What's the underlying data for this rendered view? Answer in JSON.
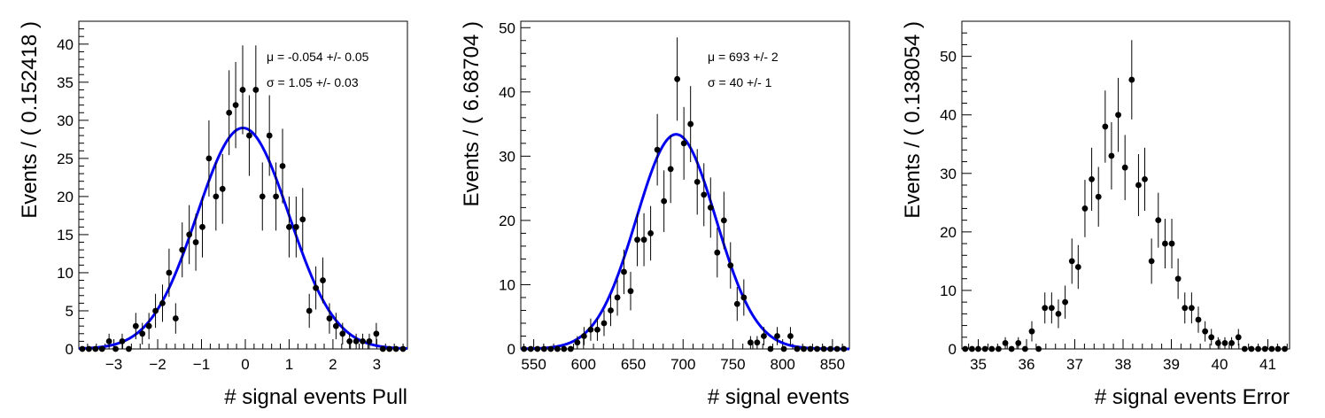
{
  "chart_data": [
    {
      "type": "scatter",
      "xlabel": "# signal events Pull",
      "ylabel": "Events / ( 0.152418 )",
      "xlim": [
        -3.8,
        3.7
      ],
      "ylim": [
        0,
        43
      ],
      "xticks": [
        -3,
        -2,
        -1,
        0,
        1,
        2,
        3
      ],
      "yticks": [
        0,
        5,
        10,
        15,
        20,
        25,
        30,
        35,
        40
      ],
      "xtick_labels": [
        "−3",
        "−2",
        "−1",
        "0",
        "1",
        "2",
        "3"
      ],
      "ytick_labels": [
        "0",
        "5",
        "10",
        "15",
        "20",
        "25",
        "30",
        "35",
        "40"
      ],
      "annotations": [
        "μ = -0.054 +/- 0.05",
        "σ =  1.05 +/- 0.03"
      ],
      "fit_curve": {
        "type": "gaussian",
        "amplitude": 29,
        "mean": -0.054,
        "sigma": 1.05,
        "color": "#0000ee"
      },
      "series": [
        {
          "marker": "circle",
          "color": "#000000",
          "x": [
            -3.72,
            -3.57,
            -3.42,
            -3.27,
            -3.11,
            -2.96,
            -2.81,
            -2.66,
            -2.5,
            -2.35,
            -2.2,
            -2.05,
            -1.89,
            -1.74,
            -1.59,
            -1.44,
            -1.28,
            -1.13,
            -0.98,
            -0.83,
            -0.67,
            -0.52,
            -0.37,
            -0.22,
            -0.06,
            0.09,
            0.24,
            0.39,
            0.55,
            0.7,
            0.85,
            1.0,
            1.16,
            1.31,
            1.46,
            1.61,
            1.77,
            1.92,
            2.07,
            2.22,
            2.38,
            2.53,
            2.68,
            2.83,
            2.99,
            3.14,
            3.29,
            3.44,
            3.6
          ],
          "y": [
            0,
            0,
            0,
            0,
            1,
            0,
            1,
            0,
            3,
            2,
            3,
            5,
            6,
            10,
            4,
            13,
            15,
            14,
            16,
            25,
            20,
            21,
            31,
            32,
            34,
            28,
            34,
            20,
            28,
            20,
            24,
            16,
            16,
            17,
            5,
            8,
            9,
            4,
            3,
            2,
            1,
            1,
            1,
            1,
            2,
            0,
            0,
            0,
            0
          ]
        }
      ]
    },
    {
      "type": "scatter",
      "xlabel": "# signal events",
      "ylabel": "Events / ( 6.68704 )",
      "xlim": [
        537,
        867
      ],
      "ylim": [
        0,
        51
      ],
      "xticks": [
        550,
        600,
        650,
        700,
        750,
        800,
        850
      ],
      "yticks": [
        0,
        10,
        20,
        30,
        40,
        50
      ],
      "xtick_labels": [
        "550",
        "600",
        "650",
        "700",
        "750",
        "800",
        "850"
      ],
      "ytick_labels": [
        "0",
        "10",
        "20",
        "30",
        "40",
        "50"
      ],
      "annotations": [
        "μ =  693 +/- 2",
        "σ =  40 +/- 1"
      ],
      "fit_curve": {
        "type": "gaussian",
        "amplitude": 33.4,
        "mean": 693,
        "sigma": 40,
        "color": "#0000ee"
      },
      "series": [
        {
          "marker": "circle",
          "color": "#000000",
          "x": [
            540.3,
            547.0,
            553.7,
            560.4,
            567.1,
            573.8,
            580.4,
            587.1,
            593.8,
            600.5,
            607.2,
            613.9,
            620.6,
            627.3,
            634.0,
            640.6,
            647.3,
            654.0,
            660.7,
            667.4,
            674.1,
            680.8,
            687.5,
            694.1,
            700.8,
            707.5,
            714.2,
            720.9,
            727.6,
            734.3,
            741.0,
            747.6,
            754.3,
            761.0,
            767.7,
            774.4,
            781.1,
            787.8,
            794.5,
            801.2,
            807.8,
            814.5,
            821.2,
            827.9,
            834.6,
            841.3,
            848.0,
            854.7,
            861.4
          ],
          "y": [
            0,
            0,
            0,
            0,
            0,
            0,
            0,
            0,
            1,
            2,
            3,
            3,
            4,
            6,
            8,
            12,
            9,
            17,
            17,
            18,
            31,
            23,
            28,
            42,
            32,
            35,
            26,
            24,
            22,
            15,
            20,
            13,
            7,
            8,
            1,
            1,
            2,
            0,
            2,
            0,
            2,
            0,
            0,
            0,
            0,
            0,
            0,
            0,
            0
          ]
        }
      ]
    },
    {
      "type": "scatter",
      "xlabel": "# signal events Error",
      "ylabel": "Events / ( 0.138054 )",
      "xlim": [
        34.66,
        41.45
      ],
      "ylim": [
        0,
        56
      ],
      "xticks": [
        35,
        36,
        37,
        38,
        39,
        40,
        41
      ],
      "yticks": [
        0,
        10,
        20,
        30,
        40,
        50
      ],
      "xtick_labels": [
        "35",
        "36",
        "37",
        "38",
        "39",
        "40",
        "41"
      ],
      "ytick_labels": [
        "0",
        "10",
        "20",
        "30",
        "40",
        "50"
      ],
      "annotations": [],
      "series": [
        {
          "marker": "circle",
          "color": "#000000",
          "x": [
            34.73,
            34.87,
            35.0,
            35.14,
            35.28,
            35.42,
            35.56,
            35.69,
            35.83,
            35.97,
            36.11,
            36.25,
            36.38,
            36.52,
            36.66,
            36.8,
            36.94,
            37.07,
            37.21,
            37.35,
            37.49,
            37.63,
            37.76,
            37.9,
            38.04,
            38.18,
            38.32,
            38.45,
            38.59,
            38.73,
            38.87,
            39.01,
            39.14,
            39.28,
            39.42,
            39.56,
            39.7,
            39.83,
            39.97,
            40.11,
            40.25,
            40.39,
            40.52,
            40.66,
            40.8,
            40.94,
            41.08,
            41.21,
            41.35
          ],
          "y": [
            0,
            0,
            0,
            0,
            0,
            0,
            1,
            0,
            1,
            0,
            3,
            0,
            7,
            7,
            6,
            8,
            15,
            14,
            24,
            29,
            26,
            38,
            33,
            40,
            31,
            46,
            28,
            29,
            15,
            22,
            18,
            18,
            12,
            7,
            7,
            5,
            3,
            2,
            1,
            1,
            1,
            2,
            0,
            0,
            0,
            0,
            0,
            0,
            0
          ]
        }
      ]
    }
  ]
}
